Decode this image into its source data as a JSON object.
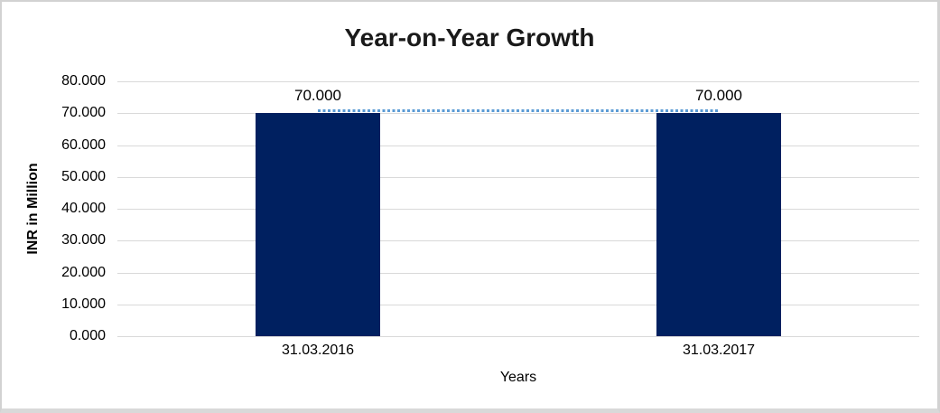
{
  "chart_data": {
    "type": "bar",
    "title": "Year-on-Year Growth",
    "xlabel": "Years",
    "ylabel": "INR in Million",
    "categories": [
      "31.03.2016",
      "31.03.2017"
    ],
    "series": [
      {
        "name": "value-bars",
        "type": "bar",
        "values": [
          70.0,
          70.0
        ],
        "color": "#002060"
      },
      {
        "name": "trend-line",
        "type": "line",
        "values": [
          70.0,
          70.0
        ],
        "color": "#5B9BD5",
        "line_style": "dotted"
      }
    ],
    "data_labels": [
      "70.000",
      "70.000"
    ],
    "yticks": [
      "80.000",
      "70.000",
      "60.000",
      "50.000",
      "40.000",
      "30.000",
      "20.000",
      "10.000",
      "0.000"
    ],
    "ylim": [
      0,
      80
    ],
    "grid": true,
    "legend": "none",
    "colors": {
      "bar": "#002060",
      "trend": "#5B9BD5",
      "gridline": "#d9d9d9",
      "text": "#000000",
      "title": "#1a1a1a",
      "frame_border": "#d2d2d2",
      "background": "#ffffff"
    }
  }
}
